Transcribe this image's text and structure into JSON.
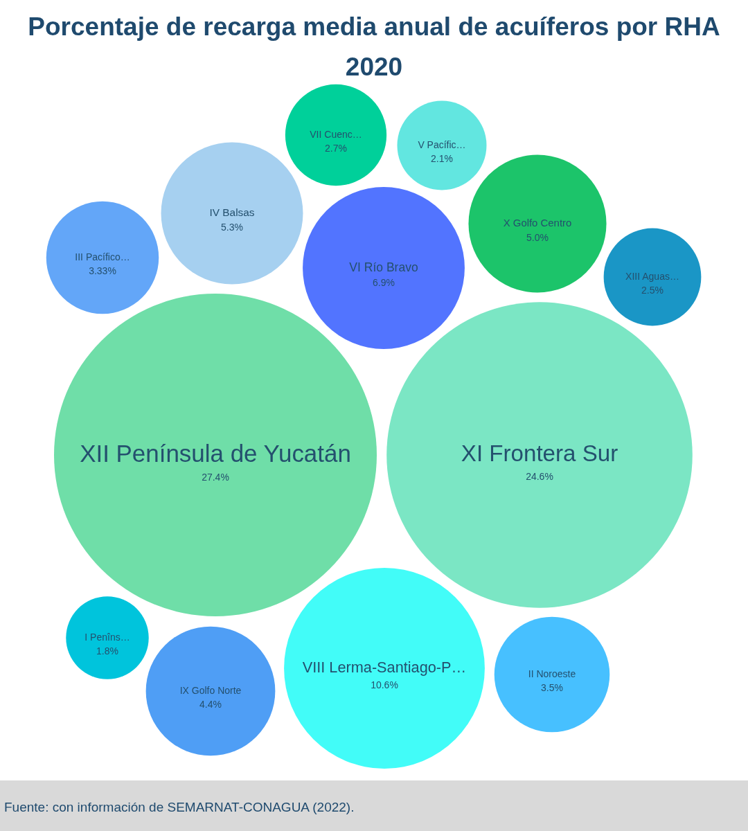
{
  "chart_data": {
    "type": "other",
    "title": "Porcentaje de recarga media anual de acuíferos por RHA 2020",
    "categories": [
      "VII Cuenc…",
      "V Pacífic…",
      "IV Balsas",
      "X Golfo Centro",
      "III Pacífico…",
      "VI Río Bravo",
      "XIII Aguas…",
      "XII Península de Yucatán",
      "XI Frontera Sur",
      "I Penîns…",
      "VIII Lerma-Santiago-P…",
      "II Noroeste",
      "IX Golfo Norte"
    ],
    "values": [
      2.7,
      2.1,
      5.3,
      5.0,
      3.33,
      6.9,
      2.5,
      27.4,
      24.6,
      1.8,
      10.6,
      3.5,
      4.4
    ],
    "value_labels": [
      "2.7%",
      "2.1%",
      "5.3%",
      "5.0%",
      "3.33%",
      "6.9%",
      "2.5%",
      "27.4%",
      "24.6%",
      "1.8%",
      "10.6%",
      "3.5%",
      "4.4%"
    ],
    "colors": [
      "#00d09a",
      "#62e6e0",
      "#a6d0f0",
      "#1cc46a",
      "#63a6f8",
      "#5274ff",
      "#1a96c6",
      "#6fdea8",
      "#7be6c4",
      "#00c4dc",
      "#42fcf8",
      "#47c0ff",
      "#4f9ef5"
    ],
    "annotations": [
      "Fuente: con información de SEMARNAT-CONAGUA (2022)."
    ]
  }
}
